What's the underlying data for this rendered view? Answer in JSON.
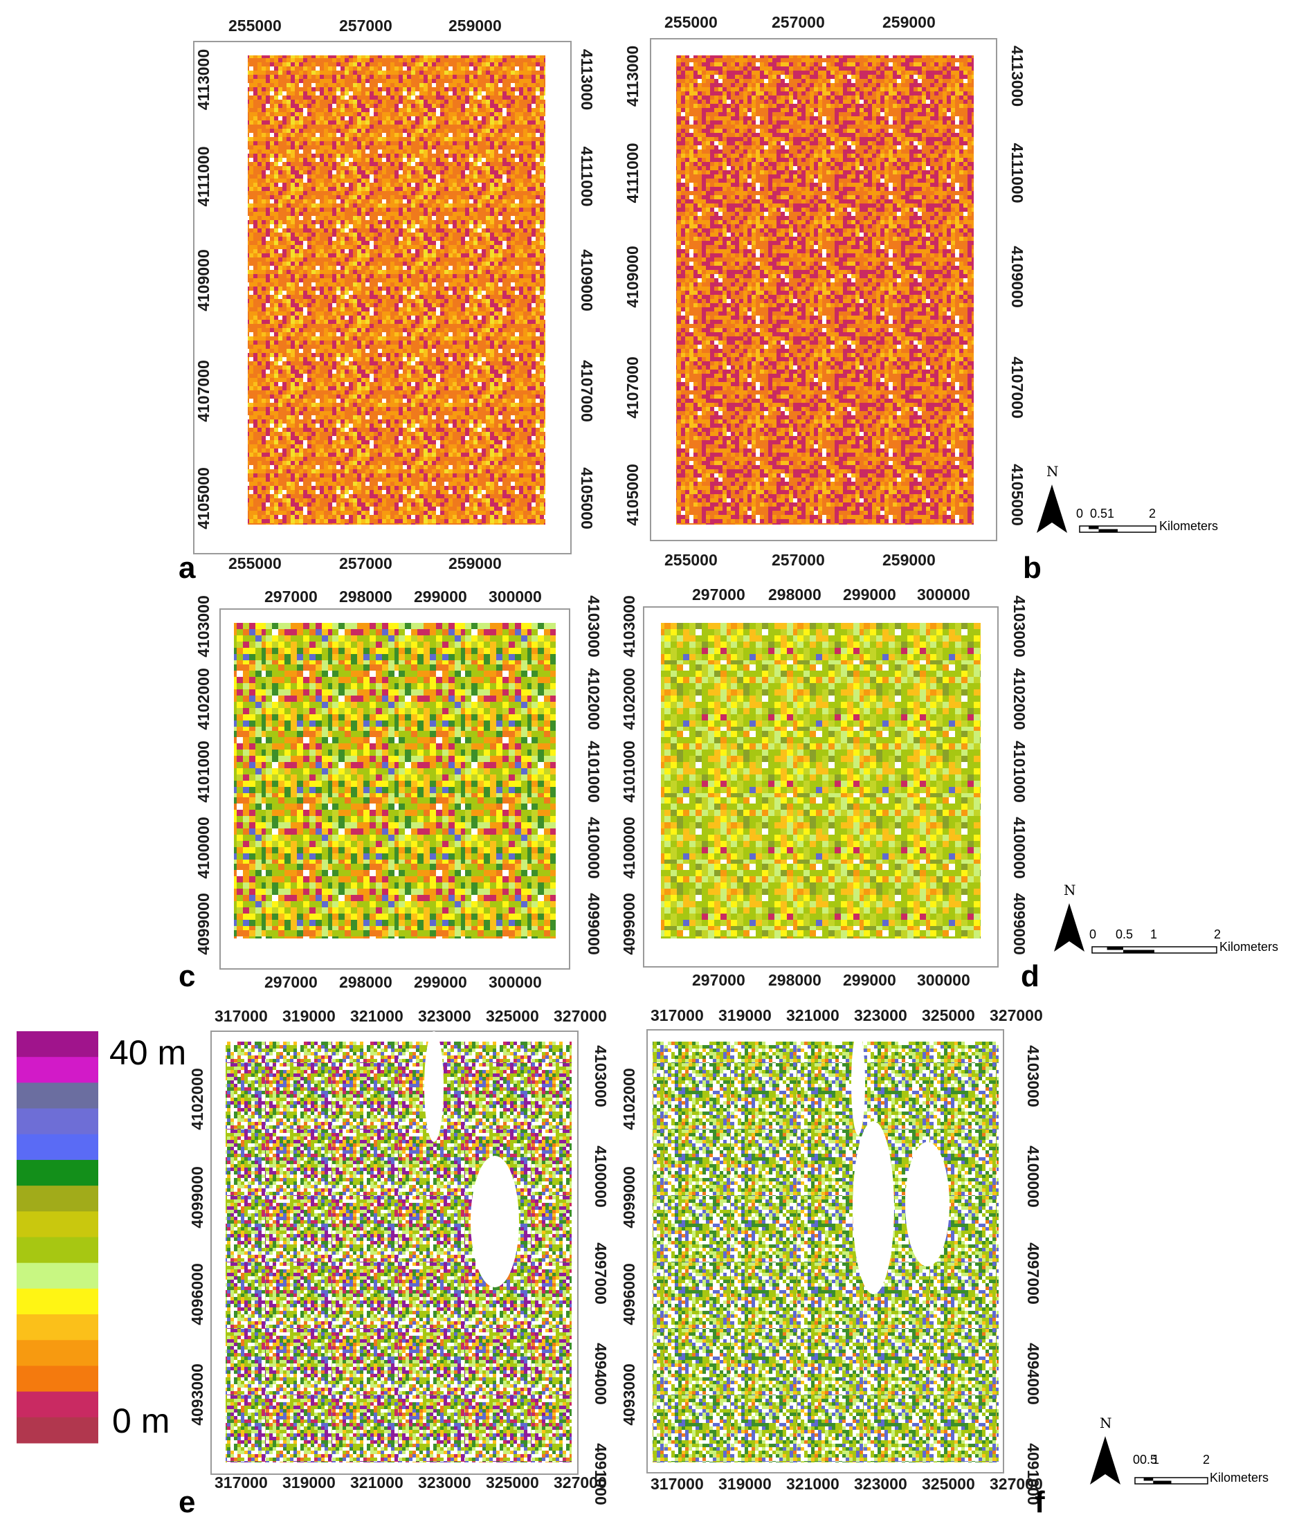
{
  "panels": [
    {
      "id": "a",
      "letter": "a",
      "x_ticks_top": [
        "255000",
        "257000",
        "259000"
      ],
      "x_ticks_bottom": [
        "255000",
        "257000",
        "259000"
      ],
      "y_ticks_left": [
        "4113000",
        "4111000",
        "4109000",
        "4107000",
        "4105000"
      ],
      "y_ticks_right": [
        "4113000",
        "4111000",
        "4109000",
        "4107000",
        "4105000"
      ],
      "palette": [
        "#c92a62",
        "#f07a1c",
        "#f79a10",
        "#fbc01a",
        "#f3e02a",
        "#ffffff"
      ],
      "weights": [
        22,
        38,
        22,
        10,
        4,
        4
      ]
    },
    {
      "id": "b",
      "letter": "b",
      "x_ticks_top": [
        "255000",
        "257000",
        "259000"
      ],
      "x_ticks_bottom": [
        "255000",
        "257000",
        "259000"
      ],
      "y_ticks_left": [
        "4113000",
        "4111000",
        "4109000",
        "4107000",
        "4105000"
      ],
      "y_ticks_right": [
        "4113000",
        "4111000",
        "4109000",
        "4107000",
        "4105000"
      ],
      "palette": [
        "#c92a62",
        "#f07a1c",
        "#f79a10",
        "#fbc01a",
        "#ffffff"
      ],
      "weights": [
        30,
        34,
        22,
        9,
        5
      ]
    },
    {
      "id": "c",
      "letter": "c",
      "x_ticks_top": [
        "297000",
        "298000",
        "299000",
        "300000"
      ],
      "x_ticks_bottom": [
        "297000",
        "298000",
        "299000",
        "300000"
      ],
      "y_ticks_left": [
        "4103000",
        "4102000",
        "4101000",
        "4100000",
        "4099000"
      ],
      "y_ticks_right": [
        "4103000",
        "4102000",
        "4101000",
        "4100000",
        "4099000"
      ],
      "palette": [
        "#a7c712",
        "#c3d528",
        "#cbf07a",
        "#fff514",
        "#fbc01a",
        "#f79a10",
        "#f07a1c",
        "#3c8f2a",
        "#5f6ad0",
        "#c92a62",
        "#ffffff"
      ],
      "weights": [
        18,
        14,
        12,
        10,
        9,
        9,
        7,
        9,
        5,
        4,
        3
      ]
    },
    {
      "id": "d",
      "letter": "d",
      "x_ticks_top": [
        "297000",
        "298000",
        "299000",
        "300000"
      ],
      "x_ticks_bottom": [
        "297000",
        "298000",
        "299000",
        "300000"
      ],
      "y_ticks_left": [
        "4103000",
        "4102000",
        "4101000",
        "4100000",
        "4099000"
      ],
      "y_ticks_right": [
        "4103000",
        "4102000",
        "4101000",
        "4100000",
        "4099000"
      ],
      "palette": [
        "#a7c712",
        "#c3d528",
        "#cbf07a",
        "#fff514",
        "#fbc01a",
        "#f79a10",
        "#8aa12a",
        "#5f6ad0",
        "#c92a62",
        "#ffffff"
      ],
      "weights": [
        26,
        18,
        16,
        10,
        8,
        7,
        8,
        2,
        2,
        3
      ]
    },
    {
      "id": "e",
      "letter": "e",
      "x_ticks_top": [
        "317000",
        "319000",
        "321000",
        "323000",
        "325000",
        "327000"
      ],
      "x_ticks_bottom": [
        "317000",
        "319000",
        "321000",
        "323000",
        "325000",
        "327000"
      ],
      "y_ticks_left": [
        "4102000",
        "4099000",
        "4096000",
        "4093000"
      ],
      "y_ticks_right": [
        "4103000",
        "4100000",
        "4097000",
        "4094000",
        "4091000"
      ],
      "palette": [
        "#ffffff",
        "#a7c712",
        "#cbf07a",
        "#3c8f2a",
        "#5f6ad0",
        "#8e1d9a",
        "#fbc01a",
        "#f07a1c",
        "#c92a62"
      ],
      "weights": [
        20,
        20,
        12,
        12,
        9,
        8,
        8,
        6,
        5
      ]
    },
    {
      "id": "f",
      "letter": "f",
      "x_ticks_top": [
        "317000",
        "319000",
        "321000",
        "323000",
        "325000",
        "327000"
      ],
      "x_ticks_bottom": [
        "317000",
        "319000",
        "321000",
        "323000",
        "325000",
        "327000"
      ],
      "y_ticks_left": [
        "4102000",
        "4099000",
        "4096000",
        "4093000"
      ],
      "y_ticks_right": [
        "4103000",
        "4100000",
        "4097000",
        "4094000",
        "4091000"
      ],
      "palette": [
        "#ffffff",
        "#a7c712",
        "#cbf07a",
        "#3c8f2a",
        "#5f6ad0",
        "#fbc01a",
        "#f07a1c"
      ],
      "weights": [
        24,
        22,
        13,
        16,
        12,
        8,
        5
      ]
    }
  ],
  "scalebars": [
    {
      "north": "N",
      "labels": [
        "0",
        "0.5",
        "1",
        "2"
      ],
      "unit": "Kilometers"
    },
    {
      "north": "N",
      "labels": [
        "0",
        "0.5",
        "1",
        "2"
      ],
      "unit": "Kilometers"
    },
    {
      "north": "N",
      "labels": [
        "00.5",
        "1",
        "2"
      ],
      "unit": "Kilometers"
    }
  ],
  "legend": {
    "top_label": "40 m",
    "bottom_label": "0 m",
    "colors": [
      "#a0148c",
      "#d21ac8",
      "#6b6ea0",
      "#6e6ed6",
      "#5a6bf5",
      "#138f1a",
      "#a1ab1a",
      "#c9c80e",
      "#a7c712",
      "#c8f782",
      "#fff514",
      "#fbc01a",
      "#f79a10",
      "#f47a0e",
      "#c92a62",
      "#b1374e"
    ]
  }
}
